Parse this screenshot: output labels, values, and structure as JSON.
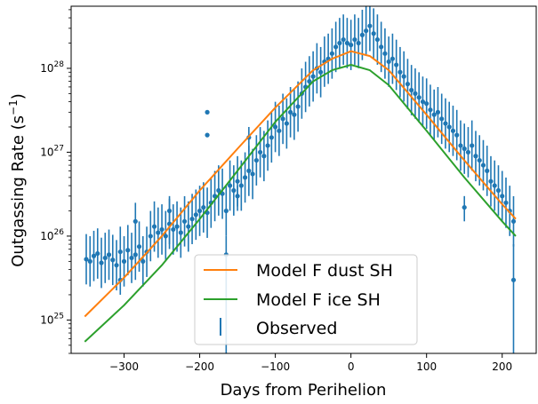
{
  "chart_data": {
    "type": "scatter",
    "xlabel": "Days from Perihelion",
    "ylabel_base": "Outgassing Rate (s",
    "ylabel_exp": "−1",
    "ylabel_close": ")",
    "y_scale": "log",
    "xlim": [
      -370,
      245
    ],
    "ylim": [
      4e+24,
      5.5e+28
    ],
    "x_ticks": [
      -300,
      -200,
      -100,
      0,
      100,
      200
    ],
    "x_tick_labels": [
      "−300",
      "−200",
      "−100",
      "0",
      "100",
      "200"
    ],
    "y_ticks": [
      {
        "value": 1e+25,
        "base": "10",
        "exp": "25"
      },
      {
        "value": 1e+26,
        "base": "10",
        "exp": "26"
      },
      {
        "value": 1e+27,
        "base": "10",
        "exp": "27"
      },
      {
        "value": 1e+28,
        "base": "10",
        "exp": "28"
      }
    ],
    "grid": false,
    "legend_position": "lower center",
    "colors": {
      "dust": "#ff7f0e",
      "ice": "#2ca02c",
      "observed": "#1f77b4"
    },
    "series": [
      {
        "name": "Model F dust SH",
        "kind": "line",
        "x": [
          -352,
          -300,
          -250,
          -200,
          -150,
          -100,
          -50,
          -25,
          0,
          25,
          50,
          100,
          150,
          200,
          218
        ],
        "y": [
          1.1e+25,
          3.2e+25,
          1e+26,
          3.5e+26,
          1.1e+27,
          3.4e+27,
          9.5e+27,
          1.3e+28,
          1.6e+28,
          1.4e+28,
          9.5e+27,
          2.8e+27,
          8e+26,
          2.4e+26,
          1.6e+26
        ]
      },
      {
        "name": "Model F ice SH",
        "kind": "line",
        "x": [
          -352,
          -300,
          -250,
          -200,
          -150,
          -100,
          -50,
          -25,
          0,
          25,
          50,
          100,
          150,
          200,
          218
        ],
        "y": [
          5.5e+24,
          1.5e+25,
          4.5e+25,
          1.6e+26,
          6e+26,
          2.3e+27,
          7e+27,
          9.5e+27,
          1.1e+28,
          9.5e+27,
          6.3e+27,
          1.8e+27,
          5e+26,
          1.5e+26,
          1e+26
        ]
      },
      {
        "name": "Observed",
        "kind": "errorbar",
        "x": [
          -350,
          -345,
          -340,
          -335,
          -330,
          -325,
          -320,
          -315,
          -310,
          -305,
          -300,
          -295,
          -290,
          -285,
          -280,
          -275,
          -270,
          -265,
          -260,
          -255,
          -250,
          -245,
          -240,
          -235,
          -230,
          -225,
          -220,
          -215,
          -210,
          -205,
          -200,
          -195,
          -190,
          -185,
          -180,
          -175,
          -170,
          -165,
          -160,
          -155,
          -150,
          -145,
          -140,
          -135,
          -130,
          -125,
          -120,
          -115,
          -110,
          -105,
          -100,
          -95,
          -90,
          -85,
          -80,
          -75,
          -70,
          -65,
          -60,
          -55,
          -50,
          -45,
          -40,
          -35,
          -30,
          -25,
          -20,
          -15,
          -10,
          -5,
          0,
          5,
          10,
          15,
          20,
          25,
          30,
          35,
          40,
          45,
          50,
          55,
          60,
          65,
          70,
          75,
          80,
          85,
          90,
          95,
          100,
          105,
          110,
          115,
          120,
          125,
          130,
          135,
          140,
          145,
          150,
          155,
          160,
          165,
          170,
          175,
          180,
          185,
          190,
          195,
          200,
          205,
          210,
          215
        ],
        "y": [
          5.3e+25,
          5e+25,
          5.8e+25,
          6.2e+25,
          4.8e+25,
          5.5e+25,
          6e+25,
          5.2e+25,
          4.5e+25,
          6.5e+25,
          5e+25,
          6.8e+25,
          5.5e+25,
          6e+25,
          7.5e+25,
          5e+25,
          6.5e+25,
          1e+26,
          1.3e+26,
          1.1e+26,
          1.2e+26,
          1e+26,
          1.4e+26,
          1.2e+26,
          1.3e+26,
          1.1e+26,
          1.5e+26,
          1.3e+26,
          1.6e+26,
          1.8e+26,
          2e+26,
          2.2e+26,
          1.9e+26,
          2.5e+26,
          3e+26,
          3.5e+26,
          3.2e+26,
          2e+26,
          4e+26,
          3.5e+26,
          4.5e+26,
          4e+26,
          5e+26,
          6e+26,
          5.5e+26,
          8e+26,
          1e+27,
          9e+26,
          1.2e+27,
          1.5e+27,
          2e+27,
          1.8e+27,
          2.5e+27,
          2.2e+27,
          3e+27,
          2.8e+27,
          3.5e+27,
          5e+27,
          6e+27,
          7e+27,
          8e+27,
          1e+28,
          9e+27,
          1.2e+28,
          1.3e+28,
          1.5e+28,
          1.8e+28,
          2e+28,
          2.2e+28,
          2e+28,
          1.9e+28,
          2.2e+28,
          2e+28,
          2.5e+28,
          2.8e+28,
          3.2e+28,
          2.6e+28,
          2.2e+28,
          1.8e+28,
          1.5e+28,
          1.2e+28,
          1.3e+28,
          1.1e+28,
          9e+27,
          8e+27,
          6.5e+27,
          5.5e+27,
          5e+27,
          4.5e+27,
          4e+27,
          3.8e+27,
          3.2e+27,
          2.8e+27,
          3e+27,
          2.5e+27,
          2.2e+27,
          2e+27,
          1.8e+27,
          1.6e+27,
          1.2e+27,
          1.1e+27,
          1e+27,
          1.2e+27,
          9e+26,
          8e+26,
          7e+26,
          6e+26,
          4.5e+26,
          4e+26,
          3.5e+26,
          3e+26,
          2.5e+26,
          2e+26,
          1.5e+26
        ],
        "err_low": [
          0.3,
          0.3,
          0.3,
          0.3,
          0.3,
          0.3,
          0.3,
          0.3,
          0.3,
          0.3,
          0.3,
          0.3,
          0.3,
          0.3,
          0.3,
          0.3,
          0.3,
          0.3,
          0.3,
          0.3,
          0.3,
          0.3,
          0.3,
          0.3,
          0.3,
          0.3,
          0.3,
          0.3,
          0.3,
          0.3,
          0.3,
          0.3,
          0.3,
          0.3,
          0.3,
          0.3,
          0.3,
          0.3,
          0.3,
          0.3,
          0.3,
          0.3,
          0.3,
          0.3,
          0.3,
          0.3,
          0.3,
          0.3,
          0.3,
          0.3,
          0.3,
          0.3,
          0.3,
          0.3,
          0.3,
          0.3,
          0.3,
          0.3,
          0.3,
          0.3,
          0.3,
          0.3,
          0.3,
          0.3,
          0.3,
          0.3,
          0.3,
          0.3,
          0.3,
          0.3,
          0.3,
          0.3,
          0.3,
          0.3,
          0.3,
          0.3,
          0.3,
          0.3,
          0.3,
          0.3,
          0.3,
          0.3,
          0.3,
          0.3,
          0.3,
          0.3,
          0.3,
          0.3,
          0.3,
          0.3,
          0.3,
          0.3,
          0.3,
          0.3,
          0.3,
          0.3,
          0.3,
          0.3,
          0.3,
          0.3,
          0.3,
          0.3,
          0.3,
          0.3,
          0.3,
          0.3,
          0.3,
          0.3,
          0.3,
          0.3,
          0.3,
          0.3,
          0.3,
          0.3
        ],
        "err_high": [
          0.3,
          0.3,
          0.3,
          0.3,
          0.3,
          0.3,
          0.3,
          0.3,
          0.3,
          0.3,
          0.3,
          0.3,
          0.3,
          0.3,
          0.3,
          0.3,
          0.3,
          0.3,
          0.3,
          0.3,
          0.3,
          0.3,
          0.3,
          0.3,
          0.3,
          0.3,
          0.3,
          0.3,
          0.3,
          0.3,
          0.3,
          0.3,
          0.3,
          0.3,
          0.3,
          0.3,
          0.3,
          0.3,
          0.3,
          0.3,
          0.3,
          0.3,
          0.3,
          0.3,
          0.3,
          0.3,
          0.3,
          0.3,
          0.3,
          0.3,
          0.3,
          0.3,
          0.3,
          0.3,
          0.3,
          0.3,
          0.3,
          0.3,
          0.3,
          0.3,
          0.3,
          0.3,
          0.3,
          0.3,
          0.3,
          0.3,
          0.3,
          0.3,
          0.3,
          0.3,
          0.3,
          0.3,
          0.3,
          0.3,
          0.3,
          0.3,
          0.3,
          0.3,
          0.3,
          0.3,
          0.3,
          0.3,
          0.3,
          0.3,
          0.3,
          0.3,
          0.3,
          0.3,
          0.3,
          0.3,
          0.3,
          0.3,
          0.3,
          0.3,
          0.3,
          0.3,
          0.3,
          0.3,
          0.3,
          0.3,
          0.3,
          0.3,
          0.3,
          0.3,
          0.3,
          0.3,
          0.3,
          0.3,
          0.3,
          0.3,
          0.3,
          0.3,
          0.3,
          0.3
        ]
      }
    ],
    "outliers": [
      {
        "x": -165,
        "y": 6e+25,
        "low": 3.9e+24,
        "high": 1e+26
      },
      {
        "x": -190,
        "y": 1.6e+27,
        "low": 1.6e+27,
        "high": 1.6e+27
      },
      {
        "x": -190,
        "y": 3e+27,
        "low": 3e+27,
        "high": 3e+27
      },
      {
        "x": -285,
        "y": 1.5e+26,
        "low": 5e+25,
        "high": 2.5e+26
      },
      {
        "x": -305,
        "y": 3e+25,
        "low": 2e+25,
        "high": 4e+25
      },
      {
        "x": -240,
        "y": 2e+26,
        "low": 8e+25,
        "high": 3e+26
      },
      {
        "x": -135,
        "y": 1.5e+27,
        "low": 1e+27,
        "high": 2e+27
      },
      {
        "x": -150,
        "y": 3e+26,
        "low": 2e+26,
        "high": 4e+26
      },
      {
        "x": 150,
        "y": 2.2e+26,
        "low": 1.5e+26,
        "high": 3e+26
      },
      {
        "x": 215,
        "y": 3e+25,
        "low": 3.9e+24,
        "high": 8e+25
      }
    ]
  }
}
